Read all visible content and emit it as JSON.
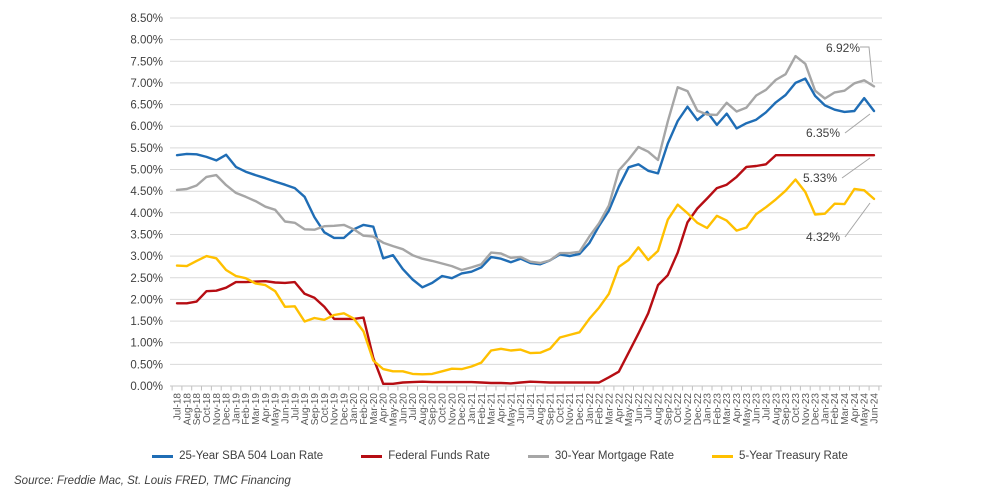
{
  "chart_data": {
    "type": "line",
    "title": "",
    "grid": "horizontal",
    "legend_position": "bottom",
    "ylim": [
      0,
      8.5
    ],
    "y_ticks": [
      "0.00%",
      "0.50%",
      "1.00%",
      "1.50%",
      "2.00%",
      "2.50%",
      "3.00%",
      "3.50%",
      "4.00%",
      "4.50%",
      "5.00%",
      "5.50%",
      "6.00%",
      "6.50%",
      "7.00%",
      "7.50%",
      "8.00%",
      "8.50%"
    ],
    "x": [
      "Jul-18",
      "Aug-18",
      "Sep-18",
      "Oct-18",
      "Nov-18",
      "Dec-18",
      "Jan-19",
      "Feb-19",
      "Mar-19",
      "Apr-19",
      "May-19",
      "Jun-19",
      "Jul-19",
      "Aug-19",
      "Sep-19",
      "Oct-19",
      "Nov-19",
      "Dec-19",
      "Jan-20",
      "Feb-20",
      "Mar-20",
      "Apr-20",
      "May-20",
      "Jun-20",
      "Jul-20",
      "Aug-20",
      "Sep-20",
      "Oct-20",
      "Nov-20",
      "Dec-20",
      "Jan-21",
      "Feb-21",
      "Mar-21",
      "Apr-21",
      "May-21",
      "Jun-21",
      "Jul-21",
      "Aug-21",
      "Sep-21",
      "Oct-21",
      "Nov-21",
      "Dec-21",
      "Jan-22",
      "Feb-22",
      "Mar-22",
      "Apr-22",
      "May-22",
      "Jun-22",
      "Jul-22",
      "Aug-22",
      "Sep-22",
      "Oct-22",
      "Nov-22",
      "Dec-22",
      "Jan-23",
      "Feb-23",
      "Mar-23",
      "Apr-23",
      "May-23",
      "Jun-23",
      "Jul-23",
      "Aug-23",
      "Sep-23",
      "Oct-23",
      "Nov-23",
      "Dec-23",
      "Jan-24",
      "Feb-24",
      "Mar-24",
      "Apr-24",
      "May-24",
      "Jun-24"
    ],
    "series": [
      {
        "name": "25-Year SBA 504 Loan Rate",
        "color": "#1F6DB5",
        "values": [
          5.33,
          5.36,
          5.35,
          5.29,
          5.21,
          5.34,
          5.06,
          4.95,
          4.87,
          4.8,
          4.72,
          4.65,
          4.57,
          4.37,
          3.9,
          3.55,
          3.42,
          3.42,
          3.62,
          3.72,
          3.68,
          2.95,
          3.02,
          2.7,
          2.46,
          2.28,
          2.38,
          2.54,
          2.49,
          2.6,
          2.64,
          2.74,
          2.98,
          2.94,
          2.86,
          2.94,
          2.84,
          2.81,
          2.9,
          3.04,
          3.0,
          3.05,
          3.3,
          3.7,
          4.05,
          4.6,
          5.05,
          5.12,
          4.97,
          4.91,
          5.6,
          6.12,
          6.45,
          6.14,
          6.33,
          6.03,
          6.29,
          5.95,
          6.07,
          6.15,
          6.32,
          6.55,
          6.72,
          7.0,
          7.1,
          6.7,
          6.48,
          6.38,
          6.33,
          6.35,
          6.65,
          6.35
        ]
      },
      {
        "name": "Federal Funds Rate",
        "color": "#B60D13",
        "values": [
          1.91,
          1.91,
          1.95,
          2.19,
          2.2,
          2.27,
          2.4,
          2.4,
          2.41,
          2.42,
          2.39,
          2.38,
          2.4,
          2.13,
          2.04,
          1.83,
          1.55,
          1.55,
          1.55,
          1.58,
          0.65,
          0.05,
          0.05,
          0.08,
          0.09,
          0.1,
          0.09,
          0.09,
          0.09,
          0.09,
          0.09,
          0.08,
          0.07,
          0.07,
          0.06,
          0.08,
          0.1,
          0.09,
          0.08,
          0.08,
          0.08,
          0.08,
          0.08,
          0.08,
          0.2,
          0.33,
          0.77,
          1.21,
          1.68,
          2.33,
          2.56,
          3.08,
          3.78,
          4.1,
          4.33,
          4.57,
          4.65,
          4.83,
          5.06,
          5.08,
          5.12,
          5.33,
          5.33,
          5.33,
          5.33,
          5.33,
          5.33,
          5.33,
          5.33,
          5.33,
          5.33,
          5.33
        ]
      },
      {
        "name": "30-Year Mortgage Rate",
        "color": "#A6A6A6",
        "values": [
          4.53,
          4.55,
          4.63,
          4.83,
          4.87,
          4.64,
          4.46,
          4.37,
          4.27,
          4.14,
          4.07,
          3.8,
          3.77,
          3.62,
          3.61,
          3.69,
          3.7,
          3.72,
          3.62,
          3.47,
          3.45,
          3.31,
          3.23,
          3.16,
          3.02,
          2.94,
          2.89,
          2.83,
          2.77,
          2.68,
          2.74,
          2.81,
          3.08,
          3.06,
          2.96,
          2.98,
          2.87,
          2.84,
          2.9,
          3.07,
          3.07,
          3.1,
          3.45,
          3.76,
          4.17,
          4.98,
          5.23,
          5.52,
          5.41,
          5.22,
          6.11,
          6.9,
          6.81,
          6.36,
          6.27,
          6.26,
          6.54,
          6.34,
          6.43,
          6.71,
          6.84,
          7.07,
          7.2,
          7.62,
          7.44,
          6.82,
          6.64,
          6.78,
          6.82,
          6.99,
          7.06,
          6.92
        ]
      },
      {
        "name": "5-Year Treasury Rate",
        "color": "#FFC000",
        "values": [
          2.78,
          2.77,
          2.89,
          3.0,
          2.95,
          2.68,
          2.54,
          2.49,
          2.37,
          2.33,
          2.19,
          1.83,
          1.84,
          1.49,
          1.57,
          1.53,
          1.64,
          1.68,
          1.56,
          1.26,
          0.59,
          0.39,
          0.34,
          0.34,
          0.28,
          0.27,
          0.28,
          0.34,
          0.4,
          0.39,
          0.45,
          0.54,
          0.82,
          0.86,
          0.82,
          0.84,
          0.76,
          0.77,
          0.86,
          1.12,
          1.18,
          1.24,
          1.55,
          1.81,
          2.13,
          2.75,
          2.91,
          3.2,
          2.91,
          3.12,
          3.84,
          4.19,
          3.99,
          3.77,
          3.65,
          3.93,
          3.82,
          3.59,
          3.66,
          3.97,
          4.13,
          4.31,
          4.51,
          4.77,
          4.48,
          3.96,
          3.98,
          4.21,
          4.2,
          4.55,
          4.52,
          4.32
        ]
      }
    ],
    "annotations": [
      {
        "text": "6.92%",
        "series": 2
      },
      {
        "text": "6.35%",
        "series": 0
      },
      {
        "text": "5.33%",
        "series": 1
      },
      {
        "text": "4.32%",
        "series": 3
      }
    ],
    "colors": {
      "gridline": "#D9D9D9",
      "axis_line": "#C6C6C6",
      "tick": "#BFBFBF",
      "y_label": "#404040",
      "x_label": "#595959",
      "annotation_text": "#404040",
      "leader_line": "#A6A6A6"
    }
  },
  "source": {
    "text": "Source: Freddie Mac, St. Louis FRED, TMC Financing"
  }
}
